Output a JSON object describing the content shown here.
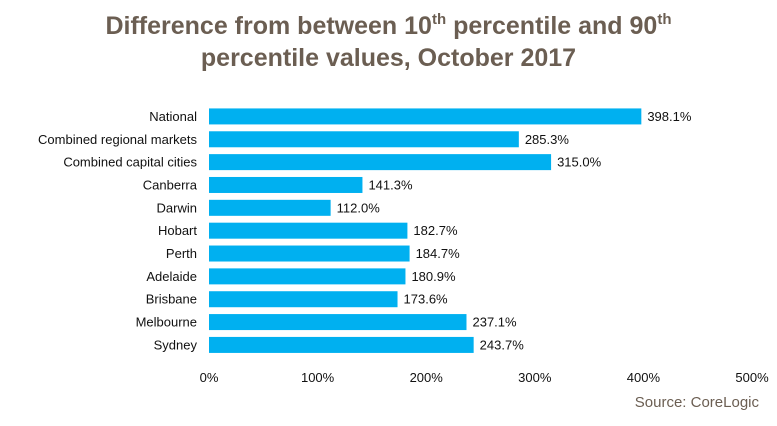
{
  "title": {
    "part1": "Difference from between 10",
    "sup1": "th",
    "part2": " percentile and 90",
    "sup2": "th",
    "line2": "percentile values, October 2017"
  },
  "source": "Source: CoreLogic",
  "colors": {
    "bar": "#00b0f0",
    "title": "#6b5e52"
  },
  "chart_data": {
    "type": "bar",
    "orientation": "horizontal",
    "title": "Difference from between 10th percentile and 90th percentile values, October 2017",
    "categories": [
      "National",
      "Combined regional markets",
      "Combined capital cities",
      "Canberra",
      "Darwin",
      "Hobart",
      "Perth",
      "Adelaide",
      "Brisbane",
      "Melbourne",
      "Sydney"
    ],
    "values": [
      398.1,
      285.3,
      315.0,
      141.3,
      112.0,
      182.7,
      184.7,
      180.9,
      173.6,
      237.1,
      243.7
    ],
    "value_labels": [
      "398.1%",
      "285.3%",
      "315.0%",
      "141.3%",
      "112.0%",
      "182.7%",
      "184.7%",
      "180.9%",
      "173.6%",
      "237.1%",
      "243.7%"
    ],
    "xlim": [
      0,
      500
    ],
    "xticks": [
      0,
      100,
      200,
      300,
      400,
      500
    ],
    "xtick_labels": [
      "0%",
      "100%",
      "200%",
      "300%",
      "400%",
      "500%"
    ],
    "xlabel": "",
    "ylabel": "",
    "grid": false,
    "legend": "none"
  }
}
